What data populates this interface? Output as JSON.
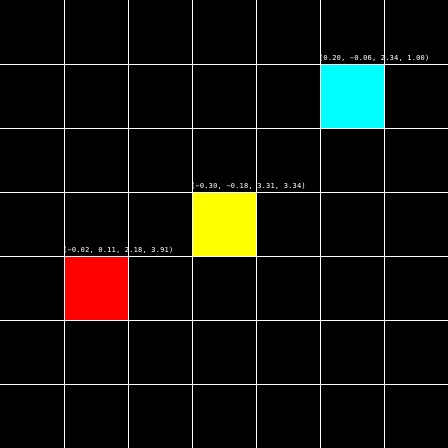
{
  "grid": {
    "rows": 7,
    "cols": 7,
    "line_color": "#ffffff",
    "background_color": "#000000"
  },
  "blocks": [
    {
      "id": "cyan",
      "color": "#00ffff",
      "row": 1,
      "col": 5,
      "label": "(0.20, −0.06, 2.34, 1.00)"
    },
    {
      "id": "yellow",
      "color": "#ffff00",
      "row": 3,
      "col": 3,
      "label": "(−0.30, −0.18, 3.31, 3.34)"
    },
    {
      "id": "red",
      "color": "#ff0000",
      "row": 4,
      "col": 1,
      "label": "(−0.02, 0.11, 2.18, 3.91)"
    }
  ]
}
